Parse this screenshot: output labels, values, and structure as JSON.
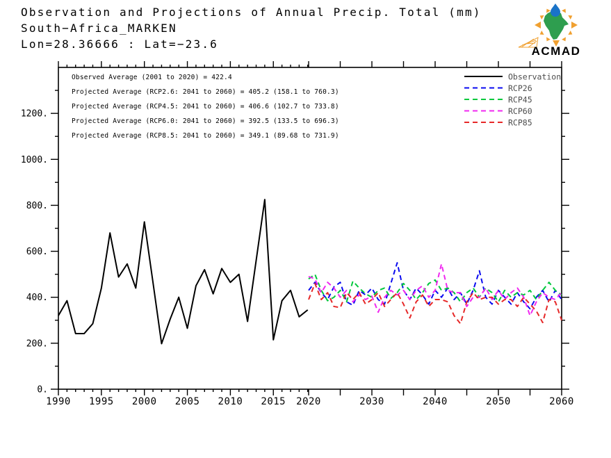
{
  "header": {
    "line1": "Observation and Projections of Annual Precip. Total (mm)",
    "line2": "South−Africa_MARKEN",
    "line3": "Lon=28.36666 : Lat=−23.6"
  },
  "logo": {
    "text": "ACMAD"
  },
  "chart_data": {
    "type": "line",
    "title": "Observation and Projections of Annual Precip. Total (mm)",
    "subtitle": "South−Africa_MARKEN",
    "location": "Lon=28.36666 : Lat=−23.6",
    "xlabel": "",
    "ylabel": "",
    "ylim": [
      0,
      1400
    ],
    "ytick_step_major": 200,
    "ytick_step_minor": 100,
    "ytick_labels": [
      "0.",
      "200.",
      "400.",
      "600.",
      "800.",
      "1000.",
      "1200."
    ],
    "ytick_values": [
      0,
      200,
      400,
      600,
      800,
      1000,
      1200
    ],
    "xtick_labels_observation": [
      "1990",
      "1995",
      "2000",
      "2005",
      "2010",
      "2015"
    ],
    "xtick_label_years_observation": [
      1990,
      1995,
      2000,
      2005,
      2010,
      2015
    ],
    "xtick_labels_projection": [
      "2020",
      "2030",
      "2040",
      "2050",
      "2060"
    ],
    "xtick_label_years_projection": [
      2020,
      2030,
      2040,
      2050,
      2060
    ],
    "grid": false,
    "legend_position": "top-right",
    "annotations": [
      "Observed Average (2001 to 2020) =  422.4",
      "Projected Average (RCP2.6: 2041 to 2060) =  405.2 (158.1 to 760.3)",
      "Projected Average (RCP4.5: 2041 to 2060) =  406.6 (102.7 to 733.8)",
      "Projected Average (RCP6.0: 2041 to 2060) =  392.5 (133.5 to 696.3)",
      "Projected Average (RCP8.5: 2041 to 2060) =  349.1 (89.68 to 731.9)"
    ],
    "legend": [
      {
        "label": "Observation",
        "color": "#000000",
        "dashed": false
      },
      {
        "label": "RCP26",
        "color": "#0a0af0",
        "dashed": true
      },
      {
        "label": "RCP45",
        "color": "#00c83c",
        "dashed": true
      },
      {
        "label": "RCP60",
        "color": "#f028f0",
        "dashed": true
      },
      {
        "label": "RCP85",
        "color": "#e62828",
        "dashed": true
      }
    ],
    "observation": {
      "start_year": 1990,
      "values": [
        320,
        385,
        242,
        242,
        285,
        440,
        680,
        488,
        545,
        440,
        728,
        465,
        198,
        305,
        400,
        265,
        450,
        520,
        415,
        525,
        465,
        500,
        295,
        560,
        825,
        215,
        385,
        430,
        315,
        345
      ]
    },
    "projections": {
      "start_year": 2020,
      "series": [
        {
          "name": "RCP26",
          "color": "#0a0af0",
          "values": [
            430,
            465,
            420,
            390,
            445,
            465,
            380,
            365,
            430,
            410,
            440,
            390,
            370,
            460,
            550,
            430,
            390,
            440,
            410,
            370,
            430,
            400,
            440,
            390,
            420,
            370,
            430,
            515,
            400,
            370,
            430,
            400,
            370,
            420,
            380,
            350,
            400,
            430,
            380,
            430,
            390
          ]
        },
        {
          "name": "RCP45",
          "color": "#00c83c",
          "values": [
            480,
            500,
            430,
            385,
            400,
            430,
            380,
            470,
            440,
            415,
            400,
            430,
            440,
            395,
            420,
            460,
            430,
            390,
            420,
            460,
            475,
            430,
            440,
            420,
            380,
            420,
            440,
            400,
            440,
            420,
            380,
            430,
            400,
            420,
            410,
            430,
            390,
            430,
            465,
            430,
            410
          ]
        },
        {
          "name": "RCP60",
          "color": "#f028f0",
          "values": [
            490,
            480,
            420,
            465,
            440,
            400,
            430,
            380,
            410,
            390,
            405,
            335,
            400,
            430,
            410,
            430,
            390,
            430,
            450,
            400,
            430,
            545,
            430,
            420,
            420,
            360,
            400,
            400,
            440,
            390,
            430,
            390,
            420,
            440,
            400,
            320,
            380,
            420,
            400,
            390,
            420
          ]
        },
        {
          "name": "RCP85",
          "color": "#e62828",
          "values": [
            390,
            460,
            390,
            420,
            360,
            355,
            420,
            390,
            420,
            370,
            390,
            420,
            360,
            390,
            420,
            370,
            310,
            380,
            410,
            360,
            390,
            390,
            380,
            320,
            285,
            380,
            420,
            390,
            400,
            400,
            370,
            390,
            390,
            360,
            400,
            370,
            340,
            290,
            390,
            380,
            300
          ]
        }
      ]
    }
  }
}
